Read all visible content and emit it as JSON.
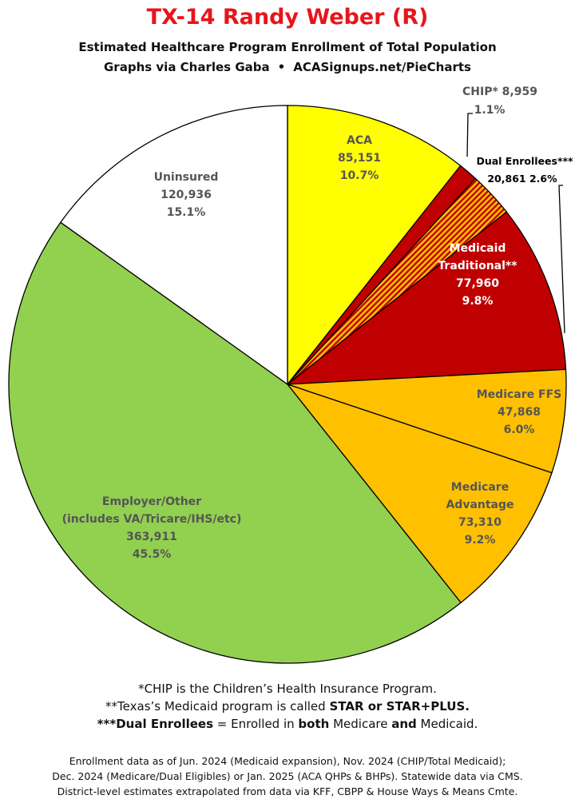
{
  "header": {
    "title": "TX-14 Randy Weber (R)",
    "subtitle": "Estimated Healthcare Program Enrollment of Total Population",
    "credit_left": "Graphs via Charles Gaba",
    "credit_separator": "•",
    "credit_right": "ACASignups.net/PieCharts"
  },
  "chart_data": {
    "type": "pie",
    "start_angle": "12 o'clock",
    "direction": "clockwise",
    "slices": [
      {
        "label": "ACA",
        "value": 85151,
        "value_text": "85,151",
        "percent": "10.7%",
        "color": "#ffff00"
      },
      {
        "label": "CHIP*",
        "value": 8959,
        "value_text": "8,959",
        "percent": "1.1%",
        "color": "#c00000"
      },
      {
        "label": "Dual Enrollees***",
        "value": 20861,
        "value_text": "20,861",
        "percent": "2.6%",
        "color": "#c00000",
        "pattern": "hatched"
      },
      {
        "label": "Medicaid Traditional**",
        "value": 77960,
        "value_text": "77,960",
        "percent": "9.8%",
        "color": "#c00000"
      },
      {
        "label": "Medicare FFS",
        "value": 47868,
        "value_text": "47,868",
        "percent": "6.0%",
        "color": "#ffc000"
      },
      {
        "label": "Medicare Advantage",
        "value": 73310,
        "value_text": "73,310",
        "percent": "9.2%",
        "color": "#ffc000"
      },
      {
        "label": "Employer/Other (includes VA/Tricare/IHS/etc)",
        "value": 363911,
        "value_text": "363,911",
        "percent": "45.5%",
        "color": "#92d050"
      },
      {
        "label": "Uninsured",
        "value": 120936,
        "value_text": "120,936",
        "percent": "15.1%",
        "color": "#ffffff"
      }
    ]
  },
  "labels": {
    "aca": {
      "name": "ACA",
      "value": "85,151",
      "pct": "10.7%"
    },
    "chip": {
      "name": "CHIP* 8,959",
      "pct": "1.1%"
    },
    "dual": {
      "name": "Dual Enrollees***",
      "value_pct": "20,861 2.6%"
    },
    "medicaid": {
      "name1": "Medicaid",
      "name2": "Traditional**",
      "value": "77,960",
      "pct": "9.8%"
    },
    "ffs": {
      "name": "Medicare FFS",
      "value": "47,868",
      "pct": "6.0%"
    },
    "ma": {
      "name1": "Medicare",
      "name2": "Advantage",
      "value": "73,310",
      "pct": "9.2%"
    },
    "employer": {
      "name1": "Employer/Other",
      "name2": "(includes VA/Tricare/IHS/etc)",
      "value": "363,911",
      "pct": "45.5%"
    },
    "uninsured": {
      "name": "Uninsured",
      "value": "120,936",
      "pct": "15.1%"
    }
  },
  "footnotes": {
    "line1": "*CHIP is the Children’s Health Insurance Program.",
    "line2_a": "**Texas’s Medicaid program is called ",
    "line2_b": "STAR or STAR+PLUS.",
    "line3_a": "***Dual Enrollees",
    "line3_b": " = Enrolled in ",
    "line3_c": "both",
    "line3_d": " Medicare ",
    "line3_e": "and",
    "line3_f": " Medicaid."
  },
  "source": {
    "line1": "Enrollment data as of Jun. 2024 (Medicaid expansion), Nov. 2024 (CHIP/Total Medicaid);",
    "line2": "Dec. 2024 (Medicare/Dual Eligibles) or Jan. 2025 (ACA QHPs & BHPs). Statewide data via CMS.",
    "line3": "District-level estimates extrapolated from data via KFF, CBPP & House Ways & Means Cmte."
  }
}
